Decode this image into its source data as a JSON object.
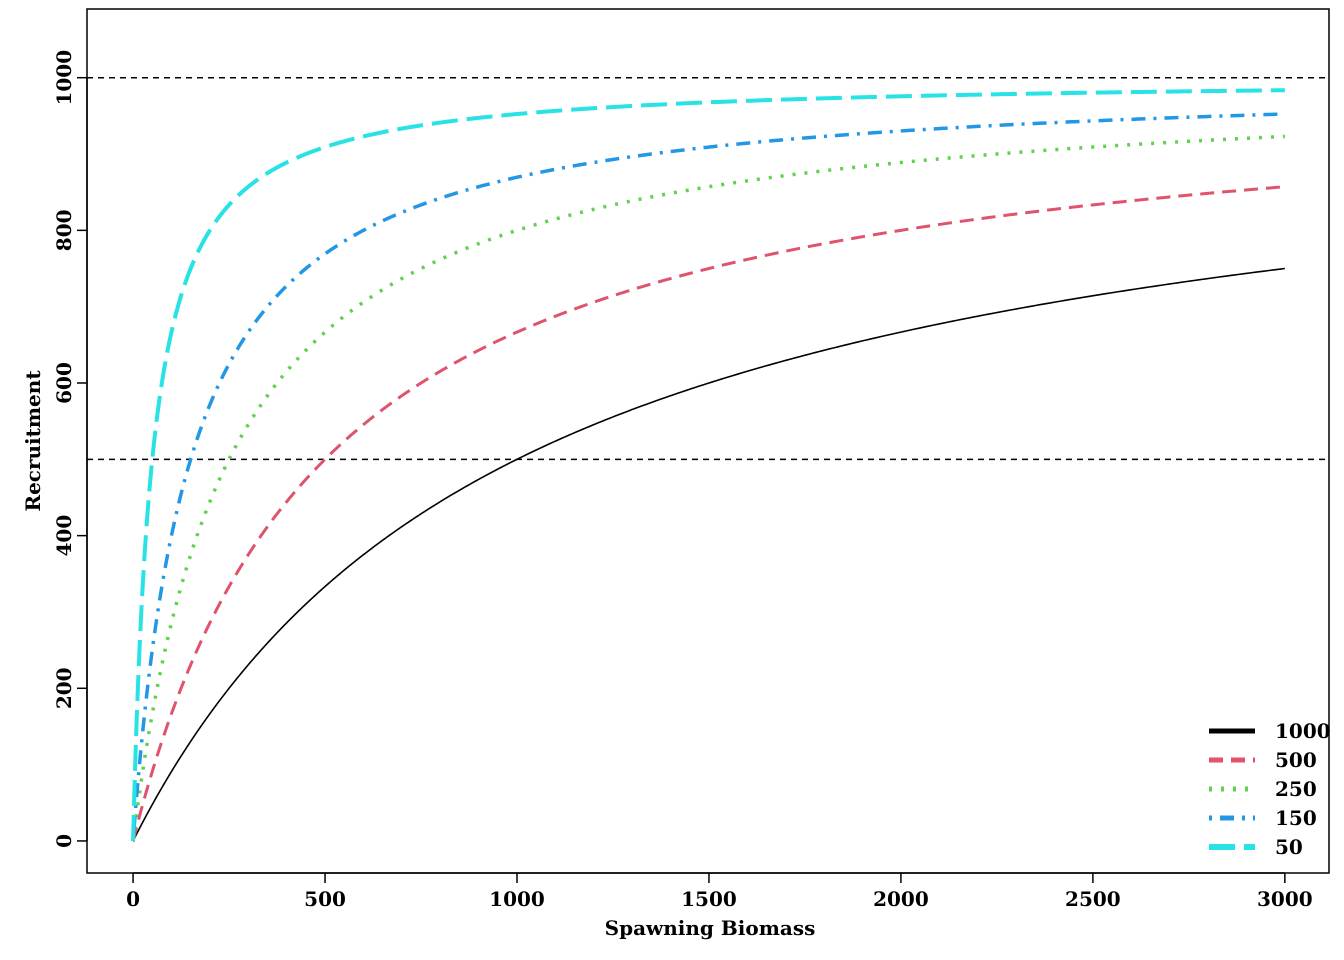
{
  "chart_data": {
    "type": "line",
    "title": "",
    "xlabel": "Spawning Biomass",
    "ylabel": "Recruitment",
    "xlim": [
      -120,
      3115
    ],
    "ylim": [
      -42,
      1090
    ],
    "x_ticks": [
      0,
      500,
      1000,
      1500,
      2000,
      2500,
      3000
    ],
    "y_ticks": [
      0,
      200,
      400,
      600,
      800,
      1000
    ],
    "grid": false,
    "legend_position": "bottom-right",
    "reference_lines": [
      {
        "y": 1000,
        "style": "dashed",
        "color": "#000000"
      },
      {
        "y": 500,
        "style": "dashed",
        "color": "#000000"
      }
    ],
    "model": "Beverton-Holt: R = 1000 * S / (K + S)",
    "x_range": [
      0,
      3000
    ],
    "series": [
      {
        "name": "1000",
        "K": 1000,
        "color": "#000000",
        "dash": "",
        "width": 1.6,
        "legend_width": 5
      },
      {
        "name": "500",
        "K": 500,
        "color": "#DF536B",
        "dash": "14,8",
        "width": 3,
        "legend_width": 5
      },
      {
        "name": "250",
        "K": 250,
        "color": "#61D04F",
        "dash": "3,9",
        "width": 3.5,
        "legend_width": 5
      },
      {
        "name": "150",
        "K": 150,
        "color": "#2297E6",
        "dash": "3,8,14,8",
        "width": 3.5,
        "legend_width": 5
      },
      {
        "name": "50",
        "K": 50,
        "color": "#28E2E5",
        "dash": "26,9",
        "width": 4,
        "legend_width": 6
      }
    ]
  }
}
